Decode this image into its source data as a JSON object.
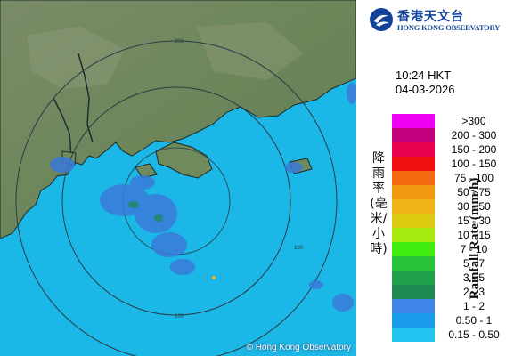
{
  "header": {
    "org_name_zh": "香港天文台",
    "org_name_en": "HONG KONG OBSERVATORY"
  },
  "timestamp": {
    "time": "10:24 HKT",
    "date": "04-03-2026"
  },
  "legend": {
    "title_en": "Rainfall Rate (mm/h)",
    "title_zh": "降雨率(毫米/小時)",
    "items": [
      {
        "label": ">300",
        "color": "#f000f0"
      },
      {
        "label": "200 - 300",
        "color": "#c2007e"
      },
      {
        "label": "150 - 200",
        "color": "#e8004e"
      },
      {
        "label": "100 - 150",
        "color": "#f01010"
      },
      {
        "label": "75 - 100",
        "color": "#f46a10"
      },
      {
        "label": "50 - 75",
        "color": "#f29a12"
      },
      {
        "label": "30 - 50",
        "color": "#f0b418"
      },
      {
        "label": "15 - 30",
        "color": "#dccb10"
      },
      {
        "label": "10 - 15",
        "color": "#a6ea10"
      },
      {
        "label": "7 - 10",
        "color": "#40ec10"
      },
      {
        "label": "5 - 7",
        "color": "#26c23a"
      },
      {
        "label": "3 - 5",
        "color": "#1fa04a"
      },
      {
        "label": "2 - 3",
        "color": "#1e8a52"
      },
      {
        "label": "1 - 2",
        "color": "#3f86e8"
      },
      {
        "label": "0.50 - 1",
        "color": "#1a9be9"
      },
      {
        "label": "0.15 - 0.50",
        "color": "#22c4f0"
      }
    ]
  },
  "map": {
    "ring_labels": [
      "200",
      "100",
      "100"
    ],
    "copyright": "© Hong Kong Observatory",
    "colors": {
      "sea": "#1bb7e6",
      "land": "#6f8a5d",
      "rain": "#3a7ad8"
    }
  }
}
